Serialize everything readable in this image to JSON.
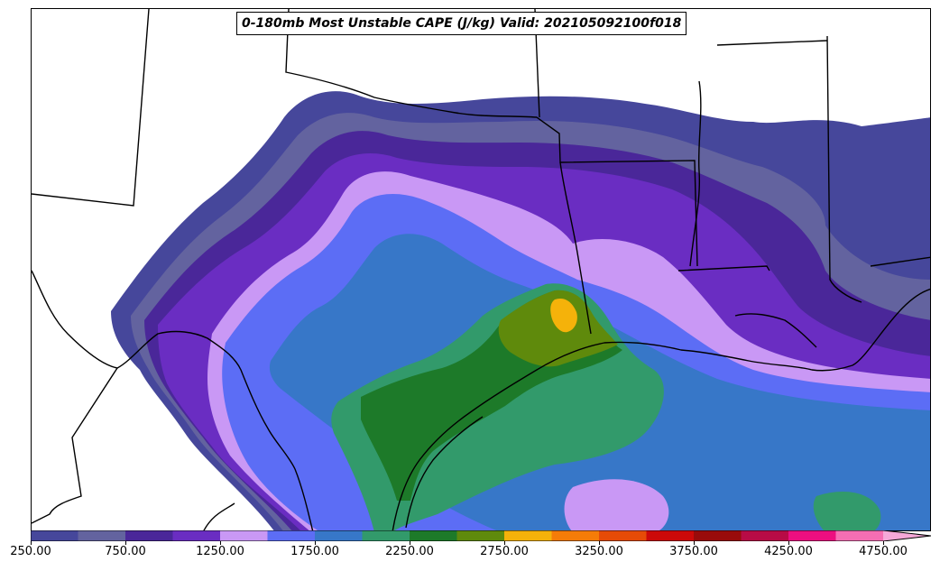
{
  "title": "0-180mb Most Unstable CAPE (J/kg) Valid: 202105092100f018",
  "colorbar": {
    "levels": [
      250,
      500,
      750,
      1000,
      1250,
      1500,
      1750,
      2000,
      2250,
      2500,
      2750,
      3000,
      3250,
      3500,
      3750,
      4000,
      4250,
      4500,
      4750
    ],
    "colors": [
      "#46479b",
      "#63639f",
      "#4a2799",
      "#6a2dc2",
      "#c998f5",
      "#5c6df5",
      "#3777c8",
      "#329a6b",
      "#1d7a29",
      "#5f8a0c",
      "#f5b20a",
      "#f57c08",
      "#e64b07",
      "#cc0909",
      "#990b0b",
      "#b80b46",
      "#ec0f80",
      "#f56eb3",
      "#f5a8d8"
    ],
    "tick_labels": [
      "250.00",
      "750.00",
      "1250.00",
      "1750.00",
      "2250.00",
      "2750.00",
      "3250.00",
      "3750.00",
      "4250.00",
      "4750.00"
    ]
  },
  "map": {
    "region": "Texas / Louisiana / Gulf Coast",
    "field": "most-unstable CAPE"
  }
}
